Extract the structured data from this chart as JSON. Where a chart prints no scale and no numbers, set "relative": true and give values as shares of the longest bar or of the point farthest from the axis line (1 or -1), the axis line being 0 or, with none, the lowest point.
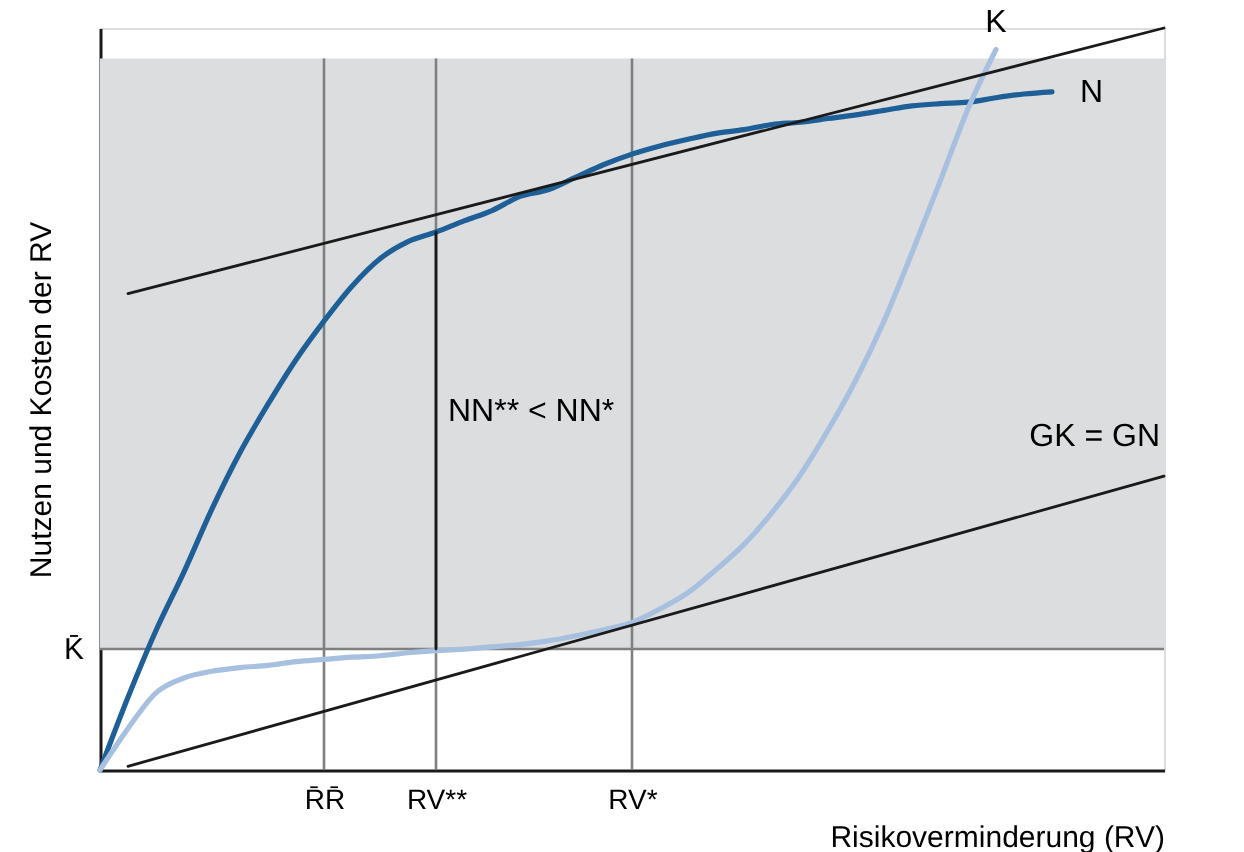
{
  "chart_data": {
    "type": "line",
    "relative": true,
    "xlabel": "Risikoverminderung (RV)",
    "ylabel": "Nutzen und Kosten der RV",
    "categories": [
      null,
      null,
      null,
      null,
      null,
      null,
      null,
      null,
      "R̄R̄",
      null,
      null,
      null,
      "RV**",
      null,
      null,
      null,
      null,
      null,
      null,
      "RV*",
      null,
      null,
      null,
      null,
      null,
      null,
      null,
      null,
      null,
      null,
      null,
      null,
      null,
      null,
      null,
      null,
      null,
      null,
      null
    ],
    "series": [
      {
        "name": "N",
        "color": "#1d5f96",
        "values": [
          0,
          0.098,
          0.188,
          0.267,
          0.352,
          0.428,
          0.493,
          0.553,
          0.605,
          0.652,
          0.689,
          0.712,
          0.725,
          0.74,
          0.754,
          0.773,
          0.782,
          0.799,
          0.816,
          0.83,
          0.841,
          0.85,
          0.858,
          0.863,
          0.87,
          0.873,
          0.878,
          0.883,
          0.889,
          0.895,
          0.898,
          0.9,
          0.906,
          0.911,
          0.914,
          null,
          null,
          null,
          null
        ]
      },
      {
        "name": "K",
        "color": "#a7c0df",
        "values": [
          0,
          0.056,
          0.104,
          0.124,
          0.133,
          0.138,
          0.141,
          0.146,
          0.149,
          0.152,
          0.154,
          0.158,
          0.161,
          0.163,
          0.166,
          0.169,
          0.174,
          0.181,
          0.189,
          0.199,
          0.217,
          0.239,
          0.27,
          0.304,
          0.347,
          0.397,
          0.458,
          0.526,
          0.605,
          0.697,
          0.793,
          0.891,
          0.971,
          null,
          null,
          null,
          null,
          null,
          null
        ]
      },
      {
        "color": "#1a1a1a",
        "values": [
          null,
          0.642,
          null,
          null,
          null,
          null,
          null,
          null,
          null,
          null,
          null,
          null,
          null,
          null,
          null,
          null,
          null,
          null,
          null,
          null,
          null,
          null,
          null,
          null,
          null,
          null,
          null,
          null,
          null,
          null,
          null,
          null,
          null,
          null,
          null,
          null,
          null,
          null,
          1
        ]
      },
      {
        "name": "GK = GN",
        "color": "#1a1a1a",
        "values": [
          null,
          0.005,
          null,
          null,
          null,
          null,
          null,
          null,
          null,
          null,
          null,
          null,
          null,
          null,
          null,
          null,
          null,
          null,
          null,
          null,
          null,
          null,
          null,
          null,
          null,
          null,
          null,
          null,
          null,
          null,
          null,
          null,
          null,
          null,
          null,
          null,
          null,
          null,
          0.396
        ]
      },
      {
        "color": "#1a1a1a",
        "x": [
          "RV**",
          "RV**"
        ],
        "values": [
          0.725,
          0.163
        ]
      }
    ],
    "ref_lines": [
      {
        "axis": "y",
        "value": 0.163,
        "label": "K̄",
        "color": "#808080"
      },
      {
        "axis": "x",
        "value": "R̄R̄",
        "color": "#808080"
      },
      {
        "axis": "x",
        "value": "RV**",
        "color": "#808080"
      },
      {
        "axis": "x",
        "value": "RV*",
        "color": "#808080"
      }
    ],
    "bands": [
      {
        "axis": "y",
        "from": 0.163,
        "to": 0.959,
        "color": "#dcdddf"
      }
    ],
    "annotations": [
      {
        "text": "NN** < NN*",
        "x": "RV**",
        "y": 0.484
      }
    ],
    "grid": false
  }
}
